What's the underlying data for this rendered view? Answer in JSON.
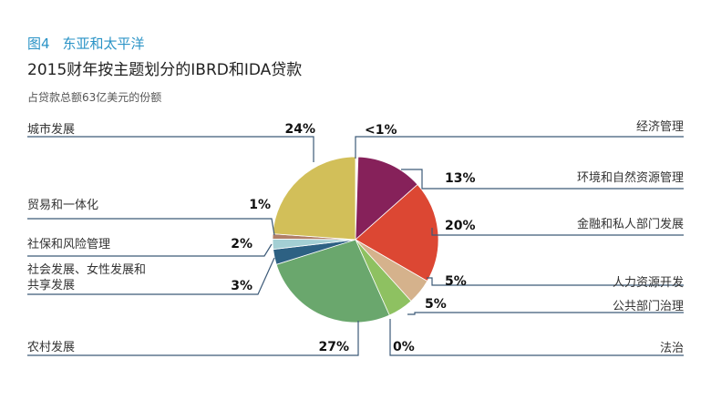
{
  "figure": {
    "number": "图4",
    "region": "东亚和太平洋",
    "title": "2015财年按主题划分的IBRD和IDA贷款",
    "subtitle": "占贷款总额63亿美元的份额"
  },
  "chart_data": {
    "type": "pie",
    "total_label": "63亿美元",
    "slices": [
      {
        "name": "经济管理",
        "value": 0.5,
        "label": "<1%",
        "color": ""
      },
      {
        "name": "环境和自然资源管理",
        "value": 13,
        "label": "13%",
        "color": "#86215a"
      },
      {
        "name": "金融和私人部门发展",
        "value": 20,
        "label": "20%",
        "color": "#dc4733"
      },
      {
        "name": "人力资源开发",
        "value": 5,
        "label": "5%",
        "color": "#d5b28c"
      },
      {
        "name": "公共部门治理",
        "value": 5,
        "label": "5%",
        "color": "#8ec161"
      },
      {
        "name": "法治",
        "value": 0,
        "label": "0%",
        "color": ""
      },
      {
        "name": "农村发展",
        "value": 27,
        "label": "27%",
        "color": "#6aa76d"
      },
      {
        "name": "社会发展、女性发展和共享发展",
        "value": 3,
        "label": "3%",
        "color": "#2d6183"
      },
      {
        "name": "社保和风险管理",
        "value": 2,
        "label": "2%",
        "color": "#a3cfd4"
      },
      {
        "name": "贸易和一体化",
        "value": 1,
        "label": "1%",
        "color": "#b07f68"
      },
      {
        "name": "城市发展",
        "value": 24,
        "label": "24%",
        "color": "#d2bf59"
      }
    ]
  }
}
